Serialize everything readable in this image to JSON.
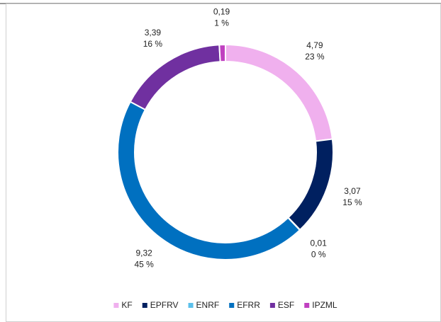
{
  "chart_data": {
    "type": "donut",
    "categories": [
      "KF",
      "EPFRV",
      "ENRF",
      "EFRR",
      "ESF",
      "IPZML"
    ],
    "values": [
      4.79,
      3.07,
      0.01,
      9.32,
      3.39,
      0.19
    ],
    "value_labels": [
      "4,79",
      "3,07",
      "0,01",
      "9,32",
      "3,39",
      "0,19"
    ],
    "percentages": [
      23,
      15,
      0,
      45,
      16,
      1
    ],
    "percentage_labels": [
      "23 %",
      "15 %",
      "0 %",
      "45 %",
      "16 %",
      "1 %"
    ],
    "colors": [
      "#f0b0ee",
      "#002060",
      "#5bc0eb",
      "#0070c0",
      "#7030a0",
      "#c040c0"
    ],
    "legend": "bottom"
  }
}
